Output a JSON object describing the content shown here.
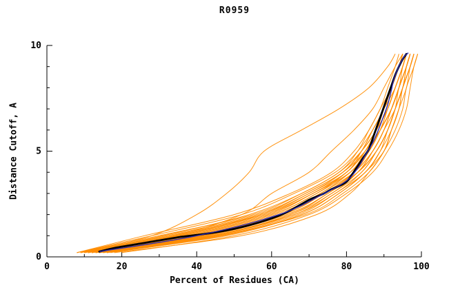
{
  "chart_data": {
    "type": "line",
    "title": "R0959",
    "xlabel": "Percent of Residues (CA)",
    "ylabel": "Distance Cutoff, A",
    "xlim": [
      0,
      100
    ],
    "ylim": [
      0,
      10
    ],
    "grid": "off",
    "legend": "none",
    "x_major_ticks": [
      0,
      20,
      40,
      60,
      80,
      100
    ],
    "x_minor_ticks": [
      10,
      30,
      50,
      70,
      90
    ],
    "y_major_ticks": [
      0,
      5,
      10
    ],
    "y_minor_ticks": [
      1,
      2,
      3,
      4,
      6,
      7,
      8,
      9
    ],
    "colors": {
      "model_lines": "#ff8c00",
      "median_line": "#000000",
      "reference_line": "#2a2ab0",
      "axis": "#000000"
    },
    "y_levels": [
      0.2,
      1,
      2,
      3,
      4,
      5,
      6,
      7,
      8,
      9,
      9.6
    ],
    "model_curves_x": [
      [
        8,
        30,
        55,
        68,
        78,
        83,
        86,
        89,
        91,
        93,
        94
      ],
      [
        10,
        35,
        58,
        70,
        80,
        84,
        87,
        90,
        92,
        94,
        95
      ],
      [
        12,
        42,
        64,
        75,
        83,
        87,
        90,
        92,
        94,
        96,
        97
      ],
      [
        15,
        45,
        66,
        76,
        84,
        88,
        91,
        93,
        95,
        96,
        97
      ],
      [
        9,
        33,
        57,
        70,
        79,
        84,
        88,
        91,
        93,
        95,
        96
      ],
      [
        11,
        38,
        60,
        72,
        81,
        85,
        88,
        90,
        92,
        94,
        95
      ],
      [
        13,
        41,
        63,
        74,
        82,
        86,
        89,
        91,
        93,
        95,
        96
      ],
      [
        16,
        46,
        67,
        77,
        85,
        89,
        91,
        93,
        95,
        97,
        98
      ],
      [
        8,
        28,
        52,
        66,
        77,
        83,
        87,
        90,
        93,
        95,
        96
      ],
      [
        10,
        36,
        59,
        71,
        80,
        85,
        88,
        91,
        93,
        95,
        96
      ],
      [
        9,
        28,
        40,
        48,
        54,
        58,
        68,
        78,
        86,
        91,
        93
      ],
      [
        20,
        50,
        70,
        80,
        87,
        91,
        94,
        96,
        97,
        98,
        99
      ],
      [
        14,
        44,
        65,
        76,
        83,
        87,
        90,
        92,
        94,
        96,
        97
      ],
      [
        12,
        39,
        61,
        73,
        81,
        86,
        89,
        91,
        93,
        95,
        96
      ],
      [
        17,
        47,
        68,
        78,
        85,
        89,
        92,
        94,
        95,
        97,
        98
      ],
      [
        9,
        32,
        56,
        69,
        79,
        84,
        87,
        90,
        92,
        94,
        95
      ],
      [
        11,
        37,
        60,
        72,
        80,
        85,
        89,
        92,
        94,
        96,
        97
      ],
      [
        13,
        43,
        64,
        75,
        82,
        86,
        89,
        92,
        94,
        95,
        96
      ],
      [
        8,
        26,
        50,
        65,
        76,
        82,
        86,
        89,
        92,
        94,
        95
      ],
      [
        15,
        45,
        65,
        75,
        83,
        88,
        91,
        93,
        95,
        97,
        98
      ],
      [
        10,
        34,
        58,
        71,
        80,
        85,
        88,
        90,
        92,
        94,
        95
      ],
      [
        12,
        40,
        62,
        74,
        82,
        87,
        90,
        92,
        94,
        96,
        97
      ],
      [
        14,
        42,
        63,
        74,
        83,
        88,
        91,
        93,
        95,
        96,
        97
      ],
      [
        16,
        48,
        68,
        78,
        85,
        90,
        92,
        94,
        96,
        97,
        98
      ],
      [
        9,
        31,
        54,
        68,
        78,
        84,
        88,
        91,
        93,
        95,
        96
      ],
      [
        11,
        36,
        59,
        71,
        81,
        86,
        89,
        92,
        94,
        96,
        97
      ],
      [
        13,
        44,
        66,
        77,
        84,
        88,
        91,
        93,
        94,
        96,
        97
      ],
      [
        18,
        52,
        72,
        81,
        86,
        90,
        92,
        94,
        95,
        97,
        98
      ],
      [
        10,
        35,
        57,
        69,
        79,
        85,
        89,
        92,
        94,
        96,
        97
      ],
      [
        12,
        41,
        62,
        73,
        82,
        87,
        90,
        93,
        95,
        97,
        98
      ],
      [
        11,
        34,
        52,
        60,
        70,
        76,
        82,
        87,
        90,
        93,
        95
      ],
      [
        14,
        46,
        69,
        79,
        86,
        90,
        93,
        95,
        96,
        98,
        99
      ]
    ],
    "median_curve": [
      [
        14,
        0.25
      ],
      [
        18,
        0.42
      ],
      [
        24,
        0.6
      ],
      [
        30,
        0.78
      ],
      [
        36,
        0.95
      ],
      [
        42,
        1.08
      ],
      [
        48,
        1.25
      ],
      [
        53,
        1.45
      ],
      [
        58,
        1.7
      ],
      [
        62,
        1.95
      ],
      [
        65,
        2.2
      ],
      [
        68,
        2.5
      ],
      [
        70,
        2.7
      ],
      [
        72,
        2.85
      ],
      [
        74,
        3.0
      ],
      [
        76,
        3.2
      ],
      [
        78,
        3.35
      ],
      [
        80,
        3.55
      ],
      [
        81.5,
        3.9
      ],
      [
        83,
        4.3
      ],
      [
        84.5,
        4.7
      ],
      [
        86,
        5.1
      ],
      [
        87,
        5.6
      ],
      [
        88,
        6.1
      ],
      [
        89,
        6.6
      ],
      [
        90,
        7.1
      ],
      [
        91,
        7.6
      ],
      [
        92,
        8.1
      ],
      [
        93,
        8.6
      ],
      [
        94,
        9.0
      ],
      [
        95,
        9.35
      ],
      [
        96,
        9.6
      ]
    ],
    "reference_curve": [
      [
        14,
        0.25
      ],
      [
        40,
        1.0
      ],
      [
        62,
        2.0
      ],
      [
        74,
        3.0
      ],
      [
        80,
        3.6
      ],
      [
        83,
        4.2
      ],
      [
        85,
        4.8
      ],
      [
        87,
        5.4
      ],
      [
        88.5,
        6.0
      ],
      [
        90,
        6.7
      ],
      [
        91,
        7.2
      ],
      [
        92,
        7.9
      ],
      [
        92.5,
        8.3
      ],
      [
        93.5,
        8.8
      ],
      [
        94.5,
        9.2
      ],
      [
        95.5,
        9.5
      ],
      [
        96.5,
        9.65
      ]
    ]
  }
}
